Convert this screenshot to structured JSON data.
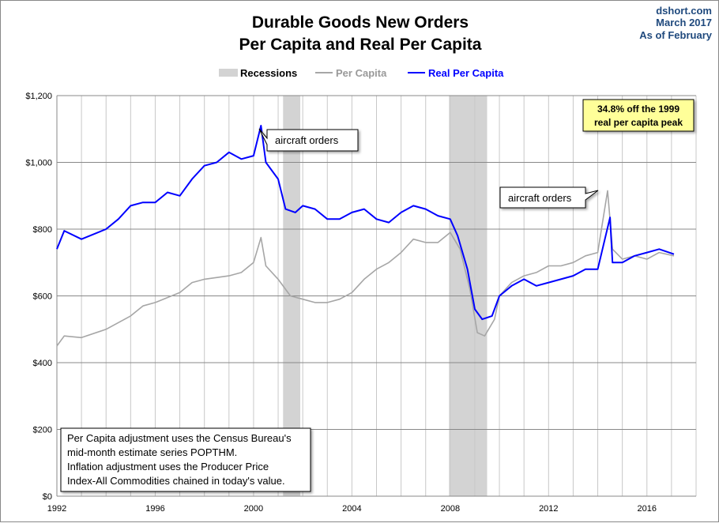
{
  "chart_data": {
    "type": "line",
    "title": "Durable Goods New Orders",
    "subtitle": "Per Capita and Real Per Capita",
    "source": [
      "dshort.com",
      "March 2017",
      "As of February"
    ],
    "legend": {
      "placement": "top-center",
      "items": [
        {
          "label": "Recessions",
          "color": "#d3d3d3"
        },
        {
          "label": "Per Capita",
          "color": "#a6a6a6"
        },
        {
          "label": "Real Per Capita",
          "color": "#0000ff"
        }
      ]
    },
    "xlim": [
      1992,
      2018
    ],
    "ylim": [
      0,
      1200
    ],
    "grid": true,
    "x_ticks": [
      "1992",
      "1996",
      "2000",
      "2004",
      "2008",
      "2012",
      "2016"
    ],
    "y_ticks": [
      "$0",
      "$200",
      "$400",
      "$600",
      "$800",
      "$1,000",
      "$1,200"
    ],
    "recessions": [
      [
        2001.2,
        2001.9
      ],
      [
        2007.95,
        2009.5
      ]
    ],
    "series": [
      {
        "name": "Per Capita",
        "color": "#a6a6a6",
        "x": [
          1992,
          1992.3,
          1993,
          1994,
          1995,
          1995.5,
          1996,
          1997,
          1997.5,
          1998,
          1999,
          1999.5,
          2000,
          2000.3,
          2000.5,
          2001,
          2001.5,
          2002,
          2002.5,
          2003,
          2003.5,
          2004,
          2004.5,
          2005,
          2005.5,
          2006,
          2006.5,
          2007,
          2007.5,
          2008,
          2008.4,
          2008.8,
          2009.1,
          2009.4,
          2009.8,
          2010,
          2010.5,
          2011,
          2011.5,
          2012,
          2012.5,
          2013,
          2013.5,
          2014,
          2014.4,
          2014.6,
          2015,
          2015.5,
          2016,
          2016.5,
          2017.1
        ],
        "y": [
          450,
          480,
          475,
          500,
          540,
          570,
          580,
          610,
          640,
          650,
          660,
          670,
          700,
          775,
          690,
          650,
          600,
          590,
          580,
          580,
          590,
          610,
          650,
          680,
          700,
          730,
          770,
          760,
          760,
          790,
          740,
          620,
          490,
          480,
          530,
          600,
          640,
          660,
          670,
          690,
          690,
          700,
          720,
          730,
          915,
          740,
          710,
          720,
          710,
          730,
          720
        ]
      },
      {
        "name": "Real Per Capita",
        "color": "#0000ff",
        "x": [
          1992,
          1992.3,
          1993,
          1994,
          1994.5,
          1995,
          1995.5,
          1996,
          1996.5,
          1997,
          1997.5,
          1998,
          1998.5,
          1999,
          1999.5,
          2000,
          2000.3,
          2000.5,
          2001,
          2001.3,
          2001.7,
          2002,
          2002.5,
          2003,
          2003.5,
          2004,
          2004.5,
          2005,
          2005.5,
          2006,
          2006.5,
          2007,
          2007.5,
          2008,
          2008.3,
          2008.7,
          2009,
          2009.3,
          2009.7,
          2010,
          2010.5,
          2011,
          2011.5,
          2012,
          2012.5,
          2013,
          2013.5,
          2014,
          2014.5,
          2014.6,
          2015,
          2015.5,
          2016,
          2016.5,
          2017.1
        ],
        "y": [
          740,
          795,
          770,
          800,
          830,
          870,
          880,
          880,
          910,
          900,
          950,
          990,
          1000,
          1030,
          1010,
          1020,
          1110,
          1000,
          950,
          860,
          850,
          870,
          860,
          830,
          830,
          850,
          860,
          830,
          820,
          850,
          870,
          860,
          840,
          830,
          780,
          680,
          560,
          530,
          540,
          600,
          630,
          650,
          630,
          640,
          650,
          660,
          680,
          680,
          835,
          700,
          700,
          720,
          730,
          740,
          725
        ]
      }
    ],
    "annotations": [
      {
        "text": "aircraft orders",
        "x": 2000.3,
        "y": 1110
      },
      {
        "text": "aircraft orders",
        "x": 2014.4,
        "y": 915
      },
      {
        "text": [
          "34.8% off the 1999",
          "real per capita peak"
        ],
        "bg": "#ffff99"
      },
      {
        "text": [
          "Per Capita adjustment uses the Census Bureau's",
          "mid-month estimate series POPTHM.",
          "Inflation adjustment uses the Producer Price",
          "Index-All Commodities chained in today's value."
        ]
      }
    ]
  }
}
